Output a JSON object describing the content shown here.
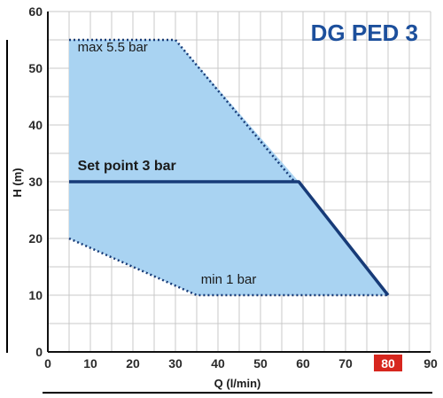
{
  "chart_data": {
    "type": "area",
    "title": "DG PED 3",
    "xlabel": "Q (l/min)",
    "ylabel": "H (m)",
    "xlim": [
      0,
      90
    ],
    "ylim": [
      0,
      60
    ],
    "x_ticks": [
      0,
      10,
      20,
      30,
      40,
      50,
      60,
      70,
      80,
      90
    ],
    "y_ticks": [
      0,
      10,
      20,
      30,
      40,
      50,
      60
    ],
    "highlight_tick": 80,
    "grid": true,
    "minor_grid_step": 5,
    "region": {
      "points": [
        [
          5,
          55
        ],
        [
          30,
          55
        ],
        [
          59,
          30
        ],
        [
          80,
          10
        ],
        [
          35,
          10
        ],
        [
          5,
          20
        ]
      ],
      "fill": "#a9d3f2"
    },
    "series": [
      {
        "name": "max 5.5 bar",
        "style": "dotted",
        "points": [
          [
            5,
            55
          ],
          [
            30,
            55
          ],
          [
            58,
            30
          ]
        ]
      },
      {
        "name": "Set point 3 bar",
        "style": "solid",
        "points": [
          [
            5,
            30
          ],
          [
            59,
            30
          ],
          [
            80,
            10
          ]
        ]
      },
      {
        "name": "min 1 bar",
        "style": "dotted",
        "points": [
          [
            5,
            20
          ],
          [
            35,
            10
          ],
          [
            80,
            10
          ]
        ]
      }
    ],
    "annotations": [
      {
        "text": "max 5.5 bar",
        "x": 7,
        "y": 53
      },
      {
        "text": "Set point 3 bar",
        "x": 7,
        "y": 32
      },
      {
        "text": "min 1 bar",
        "x": 36,
        "y": 12
      }
    ],
    "colors": {
      "region_fill": "#a9d3f2",
      "line": "#173b78",
      "grid": "#c8c8c8",
      "title": "#1c4f9c",
      "highlight": "#d7261e"
    }
  }
}
